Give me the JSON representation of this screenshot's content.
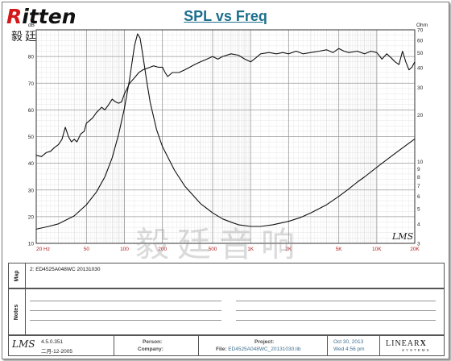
{
  "logo": {
    "word_r": "R",
    "word_rest": "itten",
    "chinese": "毅廷音响"
  },
  "watermark": "毅廷音响",
  "lms_plot_mark": "LMS",
  "chart_data": {
    "type": "line",
    "title": "SPL vs Freq",
    "x_scale": "log",
    "xlim": [
      20,
      20000
    ],
    "x_ticks": [
      {
        "v": 20,
        "label": "20 Hz"
      },
      {
        "v": 50,
        "label": "50"
      },
      {
        "v": 100,
        "label": "100"
      },
      {
        "v": 200,
        "label": "200"
      },
      {
        "v": 500,
        "label": "500"
      },
      {
        "v": 1000,
        "label": "1K"
      },
      {
        "v": 2000,
        "label": "2K"
      },
      {
        "v": 5000,
        "label": "5K"
      },
      {
        "v": 10000,
        "label": "10K"
      },
      {
        "v": 20000,
        "label": "20K"
      }
    ],
    "y_left": {
      "unit": "dB",
      "ylim": [
        10,
        90
      ],
      "ticks": [
        10,
        20,
        30,
        40,
        50,
        60,
        70,
        80
      ]
    },
    "y_right": {
      "unit": "Ohm",
      "scale": "log",
      "ylim": [
        3,
        70
      ],
      "ticks": [
        3,
        4,
        5,
        6,
        7,
        8,
        9,
        10,
        20,
        30,
        40,
        50,
        60,
        70
      ]
    },
    "grid": true,
    "spl_db": [
      [
        20,
        43
      ],
      [
        22,
        42.5
      ],
      [
        24,
        44
      ],
      [
        26,
        44.5
      ],
      [
        28,
        46
      ],
      [
        30,
        47
      ],
      [
        32,
        49
      ],
      [
        34,
        53.5
      ],
      [
        36,
        50
      ],
      [
        38,
        48
      ],
      [
        40,
        49
      ],
      [
        42,
        48
      ],
      [
        45,
        51
      ],
      [
        48,
        52
      ],
      [
        50,
        55
      ],
      [
        53,
        56
      ],
      [
        56,
        57
      ],
      [
        60,
        59
      ],
      [
        63,
        60
      ],
      [
        66,
        61
      ],
      [
        70,
        60
      ],
      [
        75,
        62
      ],
      [
        80,
        64
      ],
      [
        85,
        63
      ],
      [
        90,
        62.5
      ],
      [
        95,
        63
      ],
      [
        100,
        66
      ],
      [
        110,
        70
      ],
      [
        120,
        72
      ],
      [
        130,
        74
      ],
      [
        140,
        75
      ],
      [
        150,
        75.5
      ],
      [
        160,
        76
      ],
      [
        170,
        76.5
      ],
      [
        185,
        76
      ],
      [
        200,
        76
      ],
      [
        210,
        74
      ],
      [
        220,
        72.5
      ],
      [
        240,
        74
      ],
      [
        270,
        74
      ],
      [
        300,
        75
      ],
      [
        330,
        76
      ],
      [
        360,
        77
      ],
      [
        400,
        78
      ],
      [
        450,
        79
      ],
      [
        500,
        80
      ],
      [
        550,
        79
      ],
      [
        600,
        80
      ],
      [
        700,
        81
      ],
      [
        800,
        80.5
      ],
      [
        900,
        79
      ],
      [
        1000,
        78
      ],
      [
        1100,
        79.5
      ],
      [
        1200,
        81
      ],
      [
        1400,
        81.5
      ],
      [
        1600,
        81
      ],
      [
        1800,
        81.5
      ],
      [
        2000,
        81
      ],
      [
        2300,
        82
      ],
      [
        2600,
        81
      ],
      [
        3000,
        81.5
      ],
      [
        3500,
        82
      ],
      [
        4000,
        82.5
      ],
      [
        4500,
        81.5
      ],
      [
        5000,
        83
      ],
      [
        5500,
        82
      ],
      [
        6000,
        81.5
      ],
      [
        7000,
        82
      ],
      [
        8000,
        81
      ],
      [
        9000,
        82
      ],
      [
        10000,
        81.5
      ],
      [
        11000,
        79
      ],
      [
        12000,
        81
      ],
      [
        13000,
        79.5
      ],
      [
        14000,
        78
      ],
      [
        15000,
        77
      ],
      [
        16000,
        82
      ],
      [
        17000,
        78
      ],
      [
        18000,
        75
      ],
      [
        19000,
        76
      ],
      [
        20000,
        78
      ]
    ],
    "impedance_ohm": [
      [
        20,
        3.7
      ],
      [
        25,
        3.85
      ],
      [
        30,
        4.0
      ],
      [
        40,
        4.5
      ],
      [
        50,
        5.3
      ],
      [
        60,
        6.4
      ],
      [
        70,
        8.0
      ],
      [
        80,
        10.6
      ],
      [
        90,
        15
      ],
      [
        100,
        22
      ],
      [
        110,
        34
      ],
      [
        120,
        55
      ],
      [
        127,
        66
      ],
      [
        133,
        62
      ],
      [
        140,
        48
      ],
      [
        150,
        33
      ],
      [
        160,
        24
      ],
      [
        180,
        16
      ],
      [
        200,
        12.5
      ],
      [
        250,
        8.8
      ],
      [
        300,
        7.0
      ],
      [
        400,
        5.4
      ],
      [
        500,
        4.7
      ],
      [
        600,
        4.3
      ],
      [
        700,
        4.1
      ],
      [
        800,
        3.95
      ],
      [
        1000,
        3.85
      ],
      [
        1200,
        3.85
      ],
      [
        1500,
        3.95
      ],
      [
        2000,
        4.15
      ],
      [
        2500,
        4.4
      ],
      [
        3000,
        4.7
      ],
      [
        4000,
        5.3
      ],
      [
        5000,
        6.0
      ],
      [
        6000,
        6.7
      ],
      [
        7000,
        7.4
      ],
      [
        8000,
        8.0
      ],
      [
        10000,
        9.2
      ],
      [
        12000,
        10.3
      ],
      [
        15000,
        11.8
      ],
      [
        20000,
        14
      ]
    ]
  },
  "map": {
    "label": "Map",
    "entry": "2: ED4525A048WC   20131030"
  },
  "notes": {
    "label": "Notes"
  },
  "footer": {
    "lms": "LMS",
    "version": "4.5.0.351",
    "version_date": "二月-12-2005",
    "person_label": "Person:",
    "company_label": "Company:",
    "project_label": "Project:",
    "file_label": "File:",
    "file_value": "ED4525A048WC_20131030.lib",
    "date": "Oct 30, 2013",
    "time": "Wed  4:56 pm",
    "brand": "LINEAR",
    "brand_x": "X",
    "brand_sub": "SYSTEMS"
  },
  "colors": {
    "spl": "#111111",
    "impedance": "#111111",
    "title": "#1e6f8e",
    "grid_major": "#9a9a9a",
    "grid_minor": "#cdcdcd",
    "footer_value": "#3f6f8f"
  }
}
